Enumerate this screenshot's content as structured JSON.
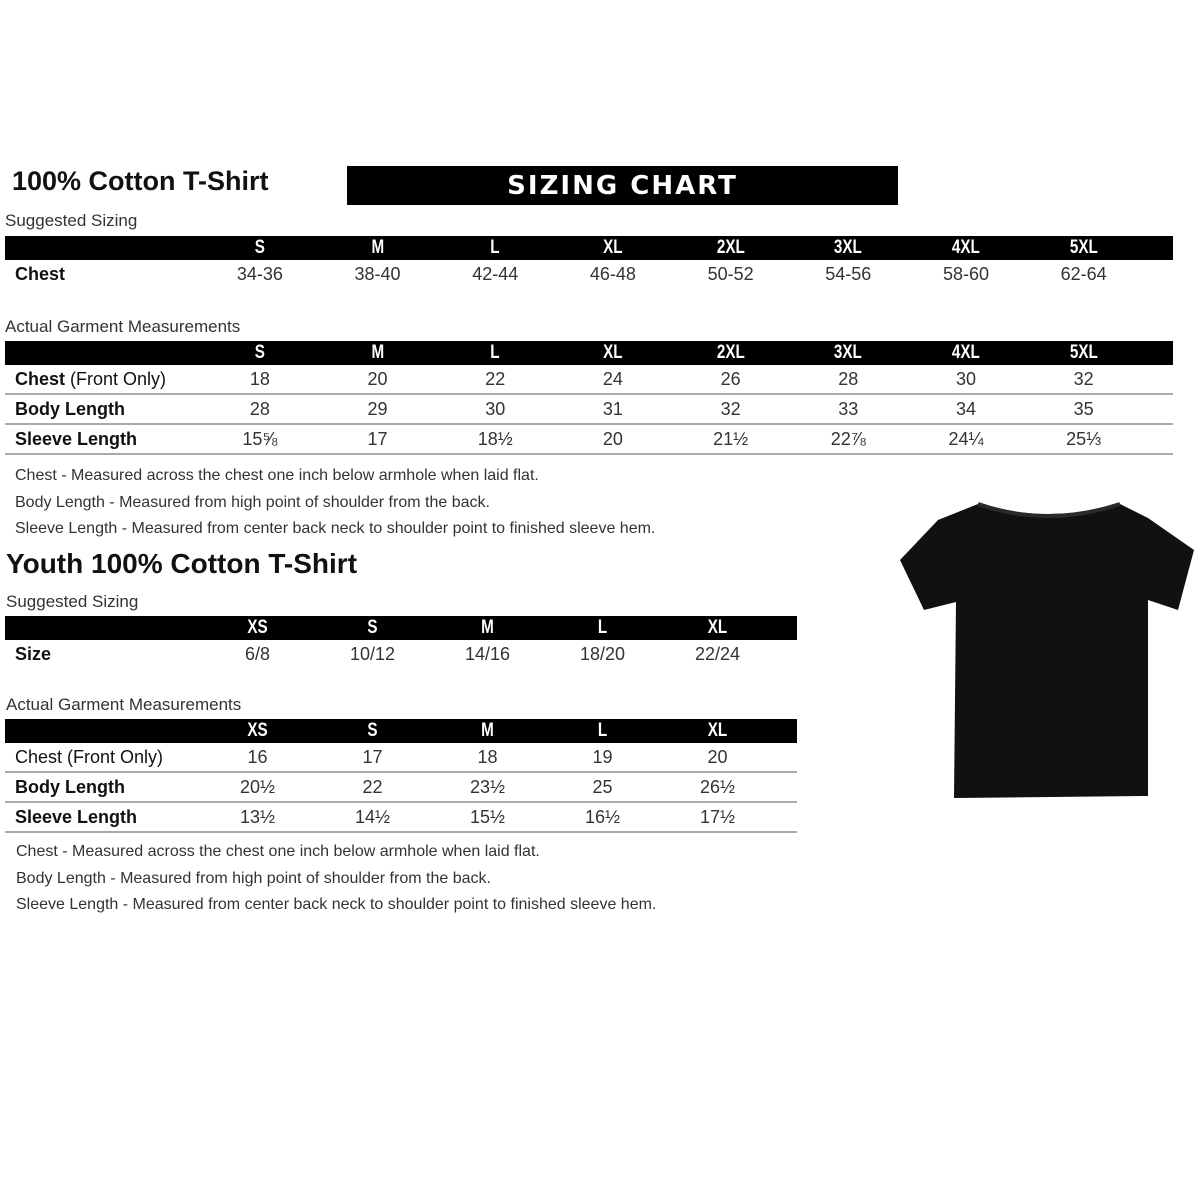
{
  "adult": {
    "title": "100% Cotton T-Shirt",
    "banner": "SIZING CHART",
    "suggested_label": "Suggested Sizing",
    "sizes": [
      "S",
      "M",
      "L",
      "XL",
      "2XL",
      "3XL",
      "4XL",
      "5XL"
    ],
    "suggested_rows": [
      {
        "label": "Chest",
        "values": [
          "34-36",
          "38-40",
          "42-44",
          "46-48",
          "50-52",
          "54-56",
          "58-60",
          "62-64"
        ]
      }
    ],
    "actual_label": "Actual Garment Measurements",
    "actual_rows": [
      {
        "label": "Chest",
        "label_suffix": " (Front Only)",
        "values": [
          "18",
          "20",
          "22",
          "24",
          "26",
          "28",
          "30",
          "32"
        ]
      },
      {
        "label": "Body Length",
        "label_suffix": "",
        "values": [
          "28",
          "29",
          "30",
          "31",
          "32",
          "33",
          "34",
          "35"
        ]
      },
      {
        "label": "Sleeve Length",
        "label_suffix": "",
        "values": [
          "15⅝",
          "17",
          "18½",
          "20",
          "21½",
          "22⅞",
          "24¼",
          "25⅓"
        ]
      }
    ],
    "notes": [
      "Chest - Measured across the chest one inch below armhole when laid flat.",
      "Body Length - Measured from high point of shoulder from the back.",
      "Sleeve Length - Measured from center back neck to shoulder point to finished sleeve hem."
    ]
  },
  "youth": {
    "title": "Youth 100% Cotton T-Shirt",
    "suggested_label": "Suggested Sizing",
    "sizes": [
      "XS",
      "S",
      "M",
      "L",
      "XL"
    ],
    "suggested_rows": [
      {
        "label": "Size",
        "values": [
          "6/8",
          "10/12",
          "14/16",
          "18/20",
          "22/24"
        ]
      }
    ],
    "actual_label": "Actual Garment Measurements",
    "actual_rows": [
      {
        "label": "Chest (Front Only)",
        "values": [
          "16",
          "17",
          "18",
          "19",
          "20"
        ]
      },
      {
        "label": "Body Length",
        "values": [
          "20½",
          "22",
          "23½",
          "25",
          "26½"
        ]
      },
      {
        "label": "Sleeve Length",
        "values": [
          "13½",
          "14½",
          "15½",
          "16½",
          "17½"
        ]
      }
    ],
    "notes": [
      "Chest - Measured across the chest one inch below armhole when laid flat.",
      "Body Length - Measured from high point of shoulder from the back.",
      "Sleeve Length - Measured from center back neck to shoulder point to finished sleeve hem."
    ]
  },
  "image": {
    "icon": "black-tshirt-icon",
    "color": "#111111"
  }
}
